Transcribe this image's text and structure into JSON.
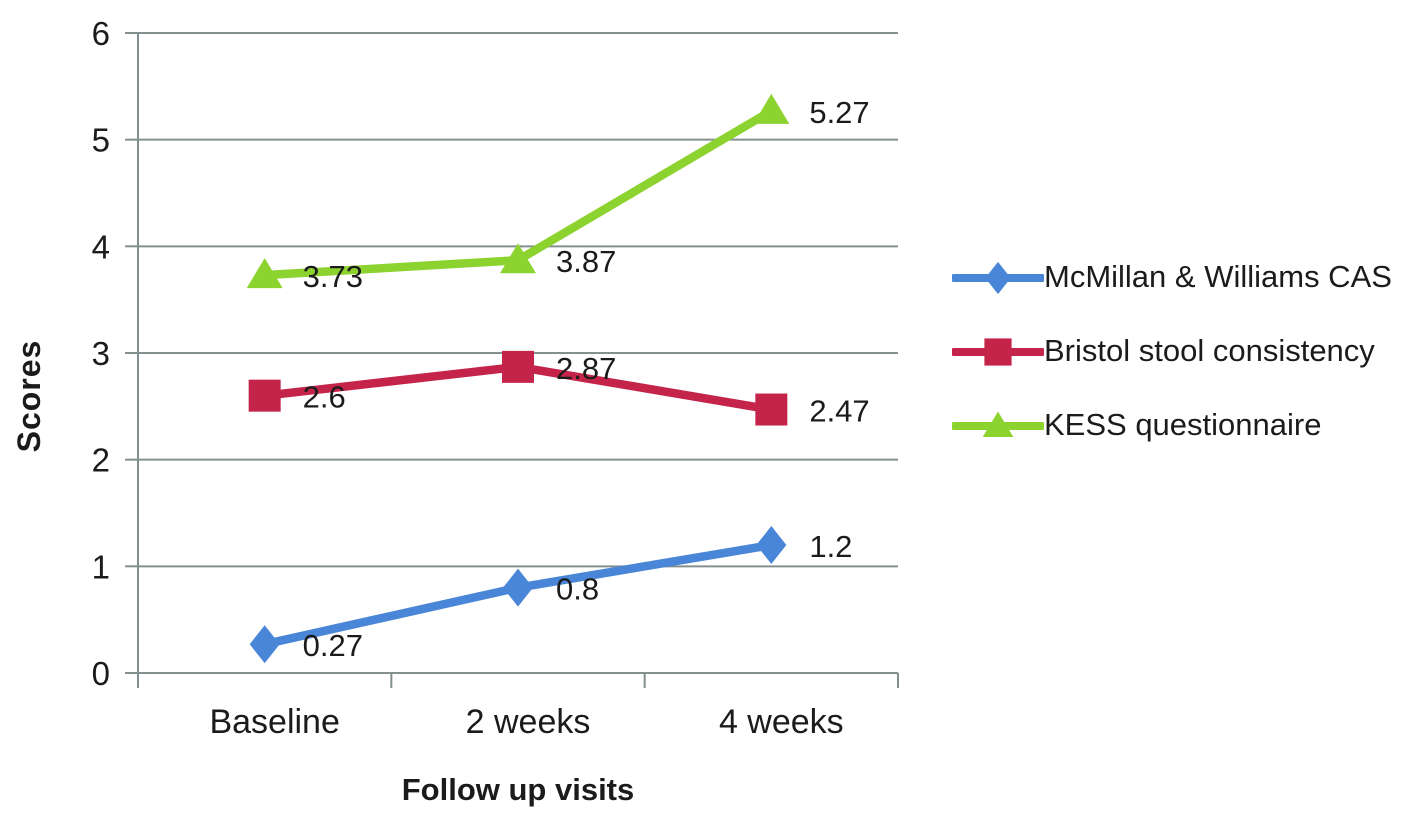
{
  "chart_data": {
    "type": "line",
    "title": "",
    "categories": [
      "Baseline",
      "2 weeks",
      "4 weeks"
    ],
    "series": [
      {
        "name": "McMillan & Williams CAS",
        "values": [
          0.27,
          0.8,
          1.2
        ],
        "labels": [
          "0.27",
          "0.8",
          "1.2"
        ],
        "color": "#4a86d8",
        "marker": "diamond"
      },
      {
        "name": "Bristol stool consistency",
        "values": [
          2.6,
          2.87,
          2.47
        ],
        "labels": [
          "2.6",
          "2.87",
          "2.47"
        ],
        "color": "#c42449",
        "marker": "square"
      },
      {
        "name": "KESS questionnaire",
        "values": [
          3.73,
          3.87,
          5.27
        ],
        "labels": [
          "3.73",
          "3.87",
          "5.27"
        ],
        "color": "#8dd32f",
        "marker": "triangle"
      }
    ],
    "xlabel": "Follow up visits",
    "ylabel": "Scores",
    "ylim": [
      0,
      6
    ],
    "ytick_step": 1,
    "yticks": [
      "0",
      "1",
      "2",
      "3",
      "4",
      "5",
      "6"
    ],
    "grid": true,
    "legend_position": "right"
  },
  "colors": {
    "axis": "#84908f",
    "text": "#1b1b1b",
    "background": "#ffffff"
  }
}
